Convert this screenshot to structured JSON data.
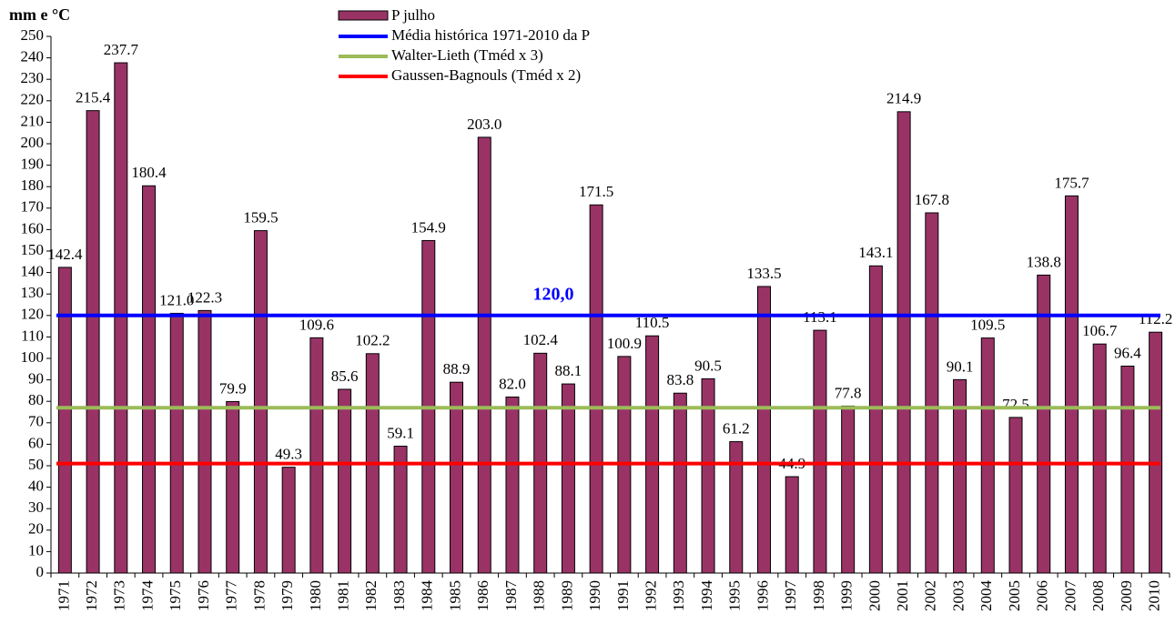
{
  "chart_data": {
    "type": "bar",
    "y_label": "mm e °C",
    "categories": [
      "1971",
      "1972",
      "1973",
      "1974",
      "1975",
      "1976",
      "1977",
      "1978",
      "1979",
      "1980",
      "1981",
      "1982",
      "1983",
      "1984",
      "1985",
      "1986",
      "1987",
      "1988",
      "1989",
      "1990",
      "1991",
      "1992",
      "1993",
      "1994",
      "1995",
      "1996",
      "1997",
      "1998",
      "1999",
      "2000",
      "2001",
      "2002",
      "2003",
      "2004",
      "2005",
      "2006",
      "2007",
      "2008",
      "2009",
      "2010"
    ],
    "series": [
      {
        "name": "P julho",
        "color": "#993366",
        "values": [
          142.4,
          215.4,
          237.7,
          180.4,
          121.0,
          122.3,
          79.9,
          159.5,
          49.3,
          109.6,
          85.6,
          102.2,
          59.1,
          154.9,
          88.9,
          203.0,
          82.0,
          102.4,
          88.1,
          171.5,
          100.9,
          110.5,
          83.8,
          90.5,
          61.2,
          133.5,
          44.9,
          113.1,
          77.8,
          143.1,
          214.9,
          167.8,
          90.1,
          109.5,
          72.5,
          138.8,
          175.7,
          106.7,
          96.4,
          112.2
        ],
        "value_labels": [
          "142.4",
          "215.4",
          "237.7",
          "180.4",
          "121.0",
          "122.3",
          "79.9",
          "159.5",
          "49.3",
          "109.6",
          "85.6",
          "102.2",
          "59.1",
          "154.9",
          "88.9",
          "203.0",
          "82.0",
          "102.4",
          "88.1",
          "171.5",
          "100.9",
          "110.5",
          "83.8",
          "90.5",
          "61.2",
          "133.5",
          "44.9",
          "113.1",
          "77.8",
          "143.1",
          "214.9",
          "167.8",
          "90.1",
          "109.5",
          "72.5",
          "138.8",
          "175.7",
          "106.7",
          "96.4",
          "112.2"
        ]
      }
    ],
    "lines": [
      {
        "name": "Média histórica 1971-2010 da P",
        "color": "#0000ff",
        "value": 120,
        "value_label": "120,0"
      },
      {
        "name": "Walter-Lieth (Tméd x 3)",
        "color": "#9bbb59",
        "value": 77
      },
      {
        "name": "Gaussen-Bagnouls (Tméd x 2)",
        "color": "#ff0000",
        "value": 51
      }
    ],
    "ylim": [
      0,
      250
    ],
    "yticks": [
      0,
      10,
      20,
      30,
      40,
      50,
      60,
      70,
      80,
      90,
      100,
      110,
      120,
      130,
      140,
      150,
      160,
      170,
      180,
      190,
      200,
      210,
      220,
      230,
      240,
      250
    ]
  }
}
